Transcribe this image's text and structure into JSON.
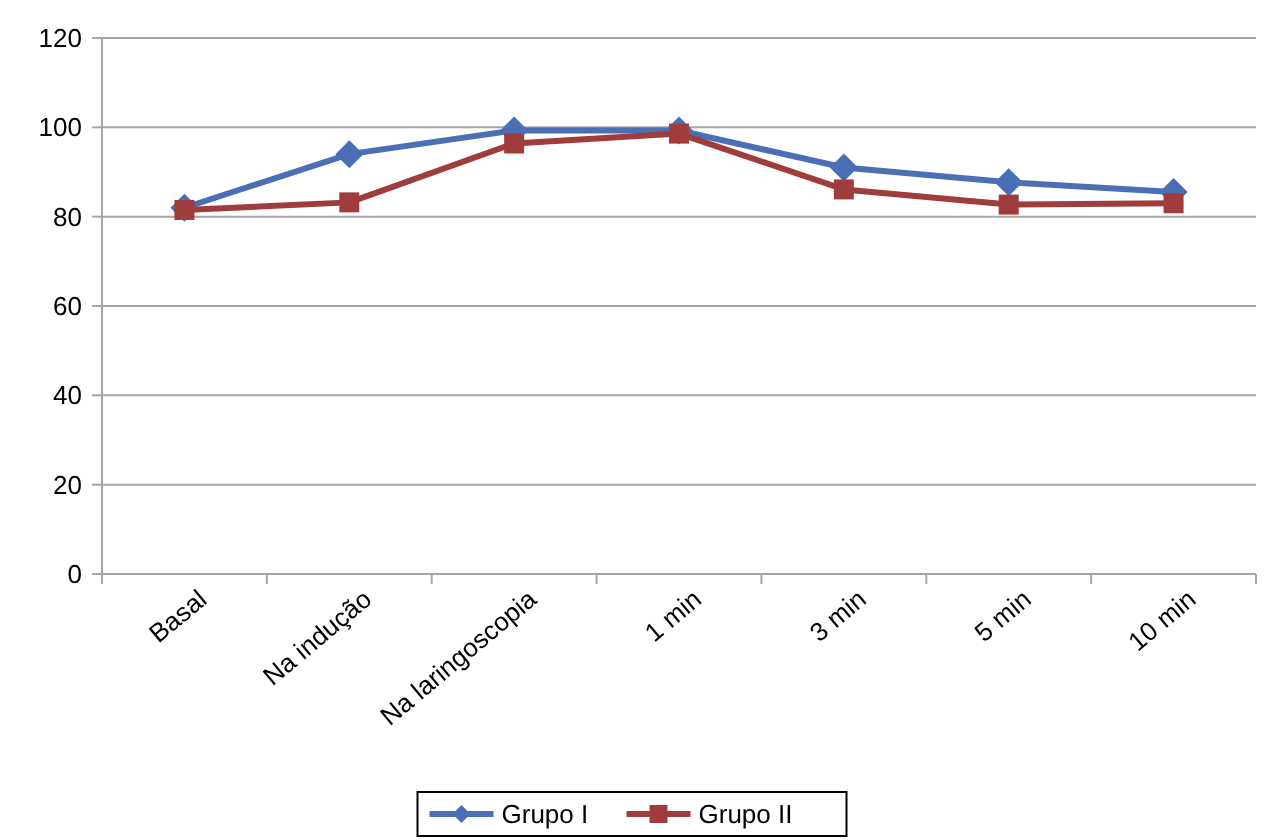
{
  "chart_data": {
    "type": "line",
    "categories": [
      "Basal",
      "Na indução",
      "Na laringoscopia",
      "1 min",
      "3 min",
      "5 min",
      "10 min"
    ],
    "series": [
      {
        "name": "Grupo I",
        "color": "#4a6fb5",
        "marker": "diamond",
        "values": [
          82,
          94,
          99.3,
          99.3,
          91,
          87.7,
          85.5
        ]
      },
      {
        "name": "Grupo II",
        "color": "#a03c3c",
        "marker": "square",
        "values": [
          81.5,
          83.2,
          96.4,
          98.6,
          86.1,
          82.7,
          83
        ]
      }
    ],
    "ylim": [
      0,
      120
    ],
    "yticks": [
      0,
      20,
      40,
      60,
      80,
      100,
      120
    ],
    "grid": "y",
    "legend": "bottom"
  }
}
